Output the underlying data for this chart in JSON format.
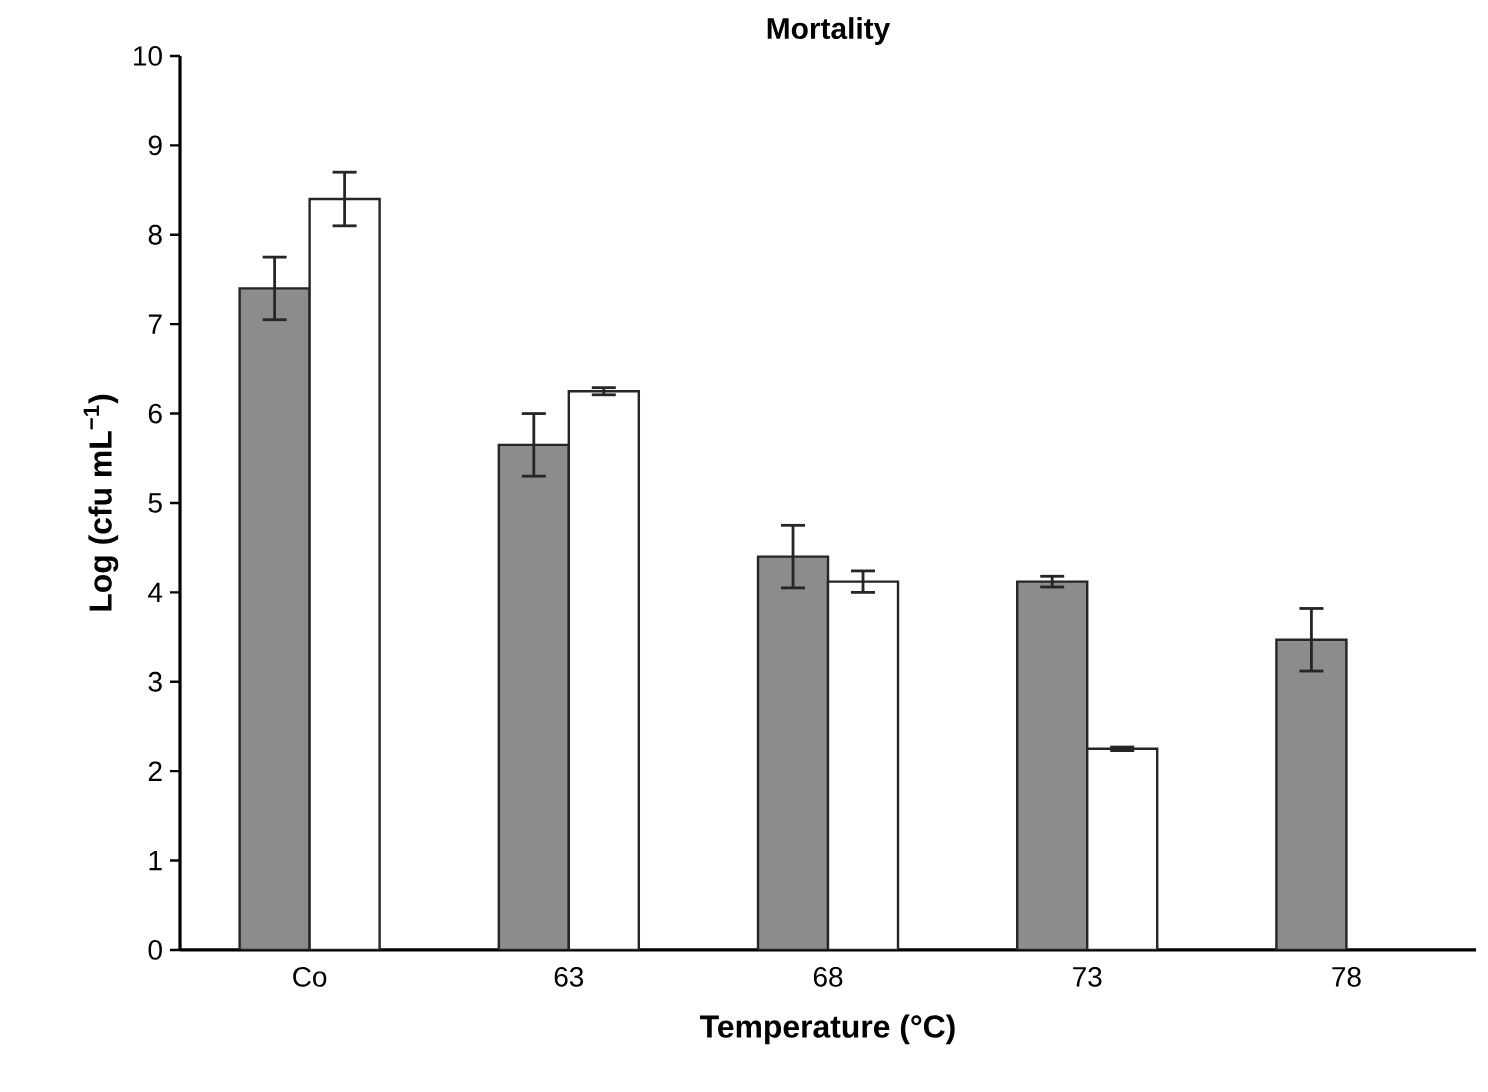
{
  "chart_data": {
    "type": "bar",
    "title": "Mortality",
    "xlabel": "Temperature (°C)",
    "ylabel": "Log (cfu mL$^{−1}$)",
    "categories": [
      "Co",
      "63",
      "68",
      "73",
      "78"
    ],
    "series": [
      {
        "color": "#8c8c8c",
        "values": [
          7.4,
          5.65,
          4.4,
          4.12,
          3.47
        ],
        "errors": [
          0.35,
          0.35,
          0.35,
          0.06,
          0.35
        ]
      },
      {
        "color": "#ffffff",
        "values": [
          8.4,
          6.25,
          4.12,
          2.25,
          null
        ],
        "errors": [
          0.3,
          0.04,
          0.12,
          0.02,
          null
        ]
      }
    ],
    "ylim": [
      0,
      10
    ],
    "yticks": [
      0,
      1,
      2,
      3,
      4,
      5,
      6,
      7,
      8,
      9,
      10
    ],
    "grid": false
  }
}
